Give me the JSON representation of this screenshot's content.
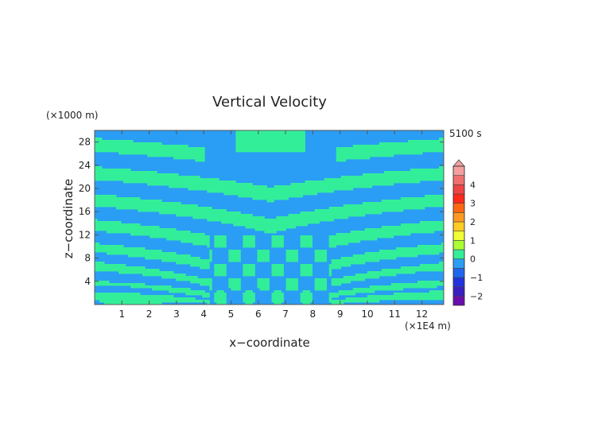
{
  "chart_data": {
    "type": "heatmap",
    "title": "Vertical Velocity",
    "xlabel": "x−coordinate",
    "ylabel": "z−coordinate",
    "x_unit": "(×1E4 m)",
    "y_unit": "(×1000 m)",
    "time_label": "5100 s",
    "xlim": [
      0,
      12.8
    ],
    "ylim": [
      0,
      30
    ],
    "x_ticks": [
      "1",
      "2",
      "3",
      "4",
      "5",
      "6",
      "7",
      "8",
      "9",
      "10",
      "11",
      "12"
    ],
    "y_ticks": [
      "4",
      "8",
      "12",
      "16",
      "20",
      "24",
      "28"
    ],
    "colorbar": {
      "levels": [
        -2.5,
        -2,
        -1.5,
        -1,
        -0.5,
        0,
        0.5,
        1,
        1.5,
        2,
        2.5,
        3,
        3.5,
        4,
        4.5,
        5
      ],
      "tick_labels": [
        "4",
        "3",
        "2",
        "1",
        "0",
        "−1",
        "−2"
      ],
      "tick_values": [
        4,
        3,
        2,
        1,
        0,
        -1,
        -2
      ],
      "colors": [
        "#6a0dad",
        "#3a1fc0",
        "#2233dd",
        "#1f66ee",
        "#2a9df4",
        "#33ee99",
        "#aaff33",
        "#eeff33",
        "#ffcc22",
        "#ff9922",
        "#ff6611",
        "#ff2a1a",
        "#ee4444",
        "#f07070",
        "#f4a0a0"
      ],
      "extend_top": true
    },
    "field": {
      "background_value": -0.1,
      "band_value": 0.2,
      "background_color": "#2a9df4",
      "band_color": "#33ee99",
      "pattern": "symmetric wave bands fanning upward from a source near x=6.5, horizontal bands at the sides"
    }
  }
}
